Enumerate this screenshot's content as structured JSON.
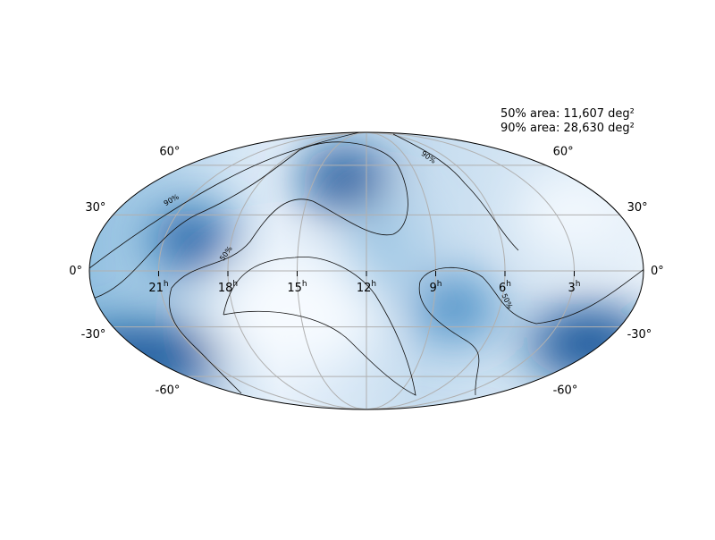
{
  "annotations": {
    "area_50": "50% area: 11,607 deg²",
    "area_90": "90% area: 28,630 deg²"
  },
  "latitudes": [
    {
      "value": 60,
      "label": "60°"
    },
    {
      "value": 30,
      "label": "30°"
    },
    {
      "value": 0,
      "label": "0°"
    },
    {
      "value": -30,
      "label": "-30°"
    },
    {
      "value": -60,
      "label": "-60°"
    }
  ],
  "right_ascensions": [
    {
      "value": 21,
      "label": "21",
      "unit": "h"
    },
    {
      "value": 18,
      "label": "18",
      "unit": "h"
    },
    {
      "value": 15,
      "label": "15",
      "unit": "h"
    },
    {
      "value": 12,
      "label": "12",
      "unit": "h"
    },
    {
      "value": 9,
      "label": "9",
      "unit": "h"
    },
    {
      "value": 6,
      "label": "6",
      "unit": "h"
    },
    {
      "value": 3,
      "label": "3",
      "unit": "h"
    }
  ],
  "contour_labels": [
    "90%",
    "50%",
    "90%",
    "50%"
  ]
}
